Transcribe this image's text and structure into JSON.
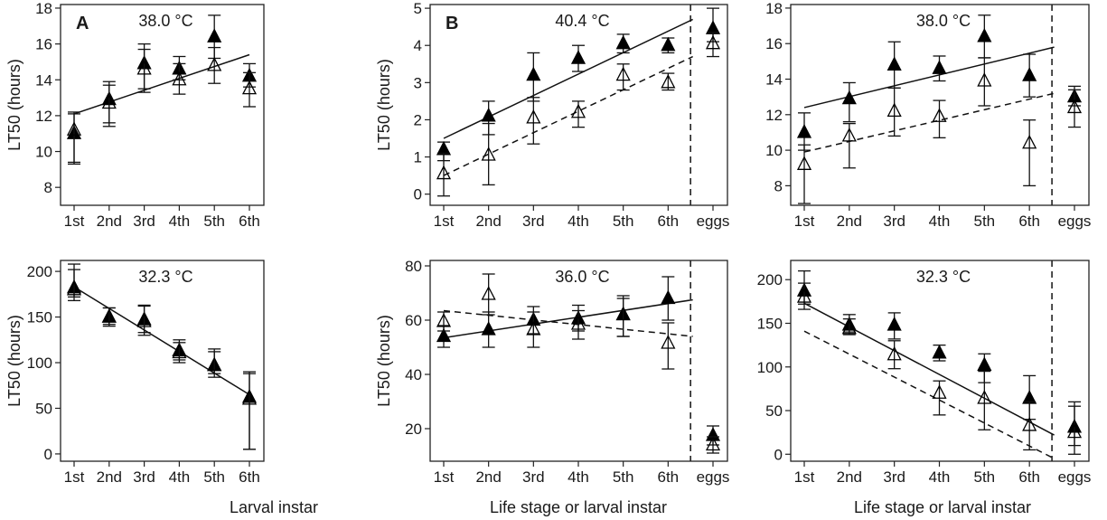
{
  "figure": {
    "xlabels": {
      "a": "Larval instar",
      "b": "Life stage or larval instar",
      "c": "Life stage or larval instar"
    },
    "ylabel": "LT50 (hours)"
  },
  "chart_data": [
    {
      "id": "a-top",
      "type": "scatter",
      "letter": "A",
      "temp": "38.0 °C",
      "categories": [
        "1st",
        "2nd",
        "3rd",
        "4th",
        "5th",
        "6th"
      ],
      "ylim": [
        7,
        18.2
      ],
      "yticks": [
        8,
        10,
        12,
        14,
        16,
        18
      ],
      "series": [
        {
          "marker": "filled",
          "values": [
            11.0,
            12.9,
            14.9,
            14.6,
            16.4,
            14.2
          ],
          "err_lo": [
            9.4,
            11.6,
            13.5,
            14.0,
            15.2,
            13.6
          ],
          "err_hi": [
            12.1,
            13.7,
            16.0,
            15.3,
            17.6,
            14.9
          ]
        },
        {
          "marker": "open",
          "values": [
            11.2,
            12.7,
            14.6,
            14.0,
            14.8,
            13.5
          ],
          "err_lo": [
            9.3,
            11.4,
            13.3,
            13.2,
            13.8,
            12.5
          ],
          "err_hi": [
            12.2,
            13.9,
            15.7,
            14.9,
            15.8,
            14.4
          ]
        }
      ],
      "fits": [
        {
          "style": "solid",
          "x_to": 6,
          "y": [
            12.1,
            15.4
          ]
        }
      ],
      "eggs_divider": false
    },
    {
      "id": "b-top",
      "type": "scatter",
      "letter": "B",
      "temp": "40.4 °C",
      "categories": [
        "1st",
        "2nd",
        "3rd",
        "4th",
        "5th",
        "6th",
        "eggs"
      ],
      "ylim": [
        -0.3,
        5.1
      ],
      "yticks": [
        0,
        1,
        2,
        3,
        4,
        5
      ],
      "series": [
        {
          "marker": "filled",
          "values": [
            1.2,
            2.1,
            3.2,
            3.65,
            4.05,
            4.0,
            4.45
          ],
          "err_lo": [
            0.9,
            1.6,
            2.5,
            3.3,
            3.8,
            3.8,
            4.1
          ],
          "err_hi": [
            1.4,
            2.5,
            3.8,
            4.0,
            4.3,
            4.2,
            5.0
          ]
        },
        {
          "marker": "open",
          "values": [
            0.55,
            1.05,
            2.05,
            2.2,
            3.2,
            3.0,
            4.05
          ],
          "err_lo": [
            -0.05,
            0.25,
            1.35,
            1.8,
            2.8,
            2.8,
            3.7
          ],
          "err_hi": [
            1.1,
            1.9,
            2.6,
            2.5,
            3.5,
            3.25,
            4.35
          ]
        }
      ],
      "fits": [
        {
          "style": "solid",
          "x_to": 6.55,
          "y": [
            1.5,
            4.7
          ]
        },
        {
          "style": "dashed",
          "x_to": 6.55,
          "y": [
            0.5,
            3.7
          ]
        }
      ],
      "eggs_divider": true
    },
    {
      "id": "c-top",
      "type": "scatter",
      "letter": "",
      "temp": "38.0 °C",
      "categories": [
        "1st",
        "2nd",
        "3rd",
        "4th",
        "5th",
        "6th",
        "eggs"
      ],
      "ylim": [
        6.9,
        18.2
      ],
      "yticks": [
        8,
        10,
        12,
        14,
        16,
        18
      ],
      "series": [
        {
          "marker": "filled",
          "values": [
            11.0,
            12.9,
            14.8,
            14.6,
            16.4,
            14.2,
            13.0
          ],
          "err_lo": [
            10.0,
            11.6,
            13.5,
            13.9,
            15.2,
            13.0,
            12.5
          ],
          "err_hi": [
            12.1,
            13.8,
            16.1,
            15.3,
            17.6,
            15.4,
            13.4
          ]
        },
        {
          "marker": "open",
          "values": [
            9.2,
            10.8,
            12.2,
            11.9,
            13.9,
            10.4,
            12.4
          ],
          "err_lo": [
            7.0,
            9.0,
            10.8,
            10.7,
            12.5,
            8.0,
            11.3
          ],
          "err_hi": [
            10.3,
            11.5,
            13.5,
            12.8,
            15.2,
            11.7,
            13.6
          ]
        }
      ],
      "fits": [
        {
          "style": "solid",
          "x_to": 6.55,
          "y": [
            12.4,
            15.8
          ]
        },
        {
          "style": "dashed",
          "x_to": 6.55,
          "y": [
            9.9,
            13.2
          ]
        }
      ],
      "eggs_divider": true
    },
    {
      "id": "a-bottom",
      "type": "scatter",
      "letter": "",
      "temp": "32.3 °C",
      "categories": [
        "1st",
        "2nd",
        "3rd",
        "4th",
        "5th",
        "6th"
      ],
      "ylim": [
        -8,
        212
      ],
      "yticks": [
        0,
        50,
        100,
        150,
        200
      ],
      "series": [
        {
          "marker": "filled",
          "values": [
            182,
            150,
            147,
            113,
            97,
            62
          ],
          "err_lo": [
            172,
            142,
            133,
            103,
            88,
            5
          ],
          "err_hi": [
            202,
            160,
            162,
            122,
            112,
            88
          ]
        },
        {
          "marker": "open",
          "values": [
            180,
            150,
            145,
            111,
            97,
            60
          ],
          "err_lo": [
            168,
            140,
            130,
            100,
            84,
            5
          ],
          "err_hi": [
            208,
            160,
            163,
            125,
            115,
            90
          ]
        }
      ],
      "fits": [
        {
          "style": "solid",
          "x_to": 6,
          "y": [
            183,
            65
          ]
        }
      ],
      "eggs_divider": false
    },
    {
      "id": "b-bottom",
      "type": "scatter",
      "letter": "",
      "temp": "36.0 °C",
      "categories": [
        "1st",
        "2nd",
        "3rd",
        "4th",
        "5th",
        "6th",
        "eggs"
      ],
      "ylim": [
        8,
        82
      ],
      "yticks": [
        20,
        40,
        60,
        80
      ],
      "series": [
        {
          "marker": "filled",
          "values": [
            54,
            56.5,
            60,
            60.5,
            62,
            68,
            17.5
          ],
          "err_lo": [
            50,
            50,
            55,
            56,
            54,
            60,
            14
          ],
          "err_hi": [
            58,
            63,
            65,
            65.5,
            69,
            76,
            21
          ]
        },
        {
          "marker": "open",
          "values": [
            59.5,
            69.5,
            56.5,
            58.5,
            62,
            51.5,
            14
          ],
          "err_lo": [
            56,
            62,
            50,
            53,
            54,
            42,
            11
          ],
          "err_hi": [
            63,
            77,
            63,
            63.5,
            68,
            59,
            17
          ]
        }
      ],
      "fits": [
        {
          "style": "solid",
          "x_to": 6.55,
          "y": [
            53.5,
            67.5
          ]
        },
        {
          "style": "dashed",
          "x_to": 6.55,
          "y": [
            63.5,
            54
          ]
        }
      ],
      "eggs_divider": true
    },
    {
      "id": "c-bottom",
      "type": "scatter",
      "letter": "",
      "temp": "32.3 °C",
      "categories": [
        "1st",
        "2nd",
        "3rd",
        "4th",
        "5th",
        "6th",
        "eggs"
      ],
      "ylim": [
        -8,
        222
      ],
      "yticks": [
        0,
        50,
        100,
        150,
        200
      ],
      "series": [
        {
          "marker": "filled",
          "values": [
            187,
            148,
            148,
            116,
            102,
            64,
            31
          ],
          "err_lo": [
            172,
            140,
            132,
            107,
            82,
            40,
            10
          ],
          "err_hi": [
            210,
            160,
            162,
            125,
            115,
            90,
            60
          ]
        },
        {
          "marker": "open",
          "values": [
            180,
            144,
            114,
            70,
            64,
            33,
            25
          ],
          "err_lo": [
            166,
            137,
            98,
            45,
            28,
            5,
            0
          ],
          "err_hi": [
            196,
            155,
            130,
            84,
            95,
            60,
            55
          ]
        }
      ],
      "fits": [
        {
          "style": "solid",
          "x_to": 6.55,
          "y": [
            173,
            22
          ]
        },
        {
          "style": "dashed",
          "x_to": 6.55,
          "y": [
            141,
            -5
          ]
        }
      ],
      "eggs_divider": true
    }
  ]
}
